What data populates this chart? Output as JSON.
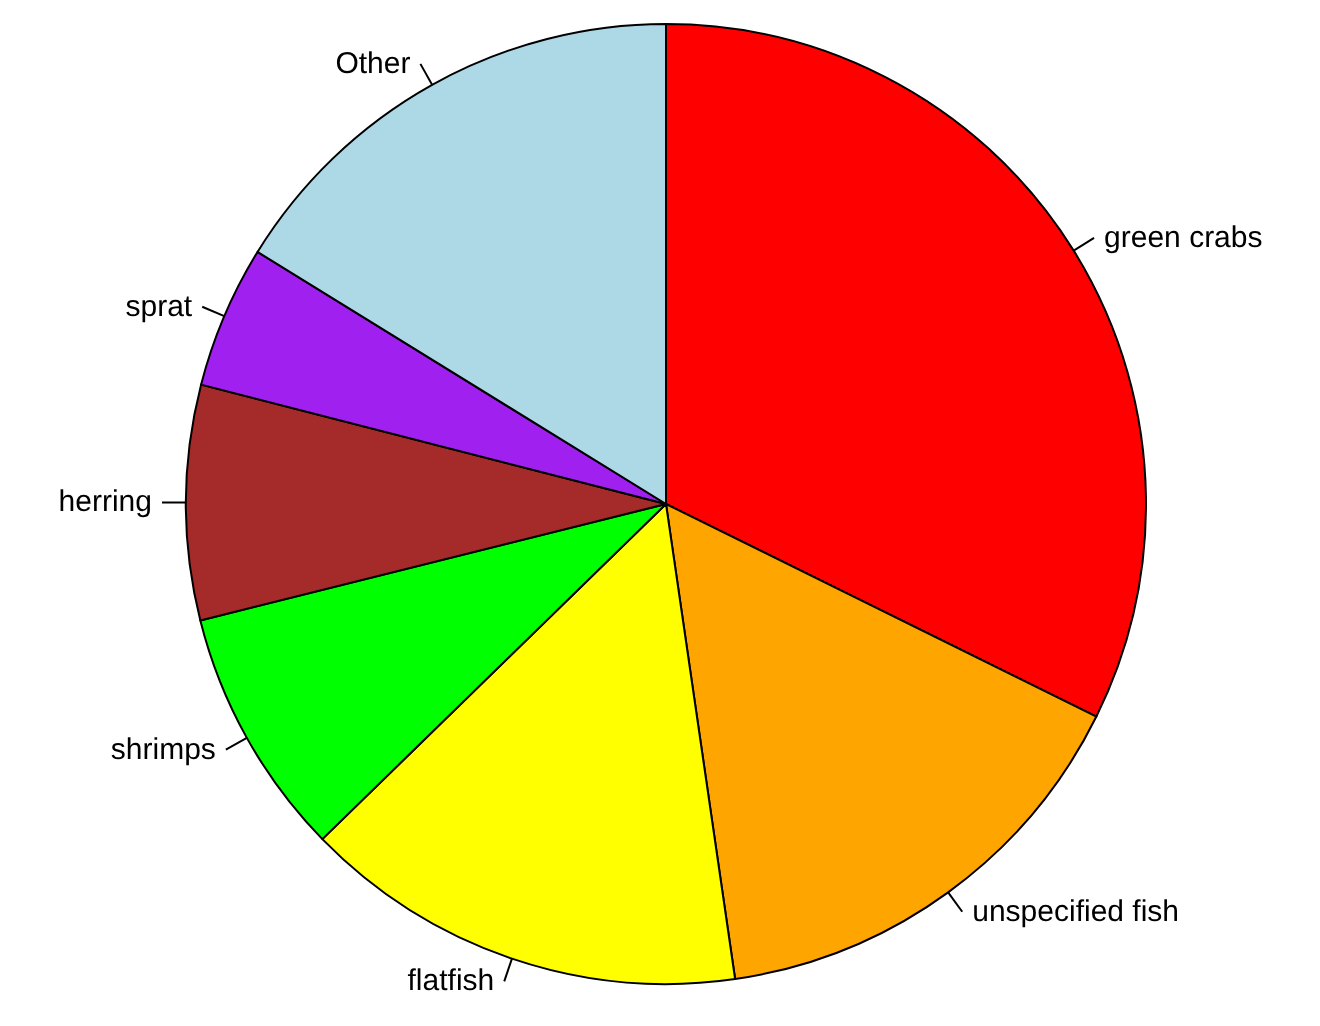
{
  "chart_data": {
    "type": "pie",
    "categories": [
      "green crabs",
      "unspecified fish",
      "flatfish",
      "shrimps",
      "herring",
      "sprat",
      "Other"
    ],
    "values": [
      32.3,
      15.4,
      15.0,
      8.4,
      7.9,
      4.8,
      16.2
    ],
    "colors": [
      "#ff0000",
      "#ffa500",
      "#ffff00",
      "#00ff00",
      "#a52a2a",
      "#a020f0",
      "#add8e6"
    ]
  }
}
